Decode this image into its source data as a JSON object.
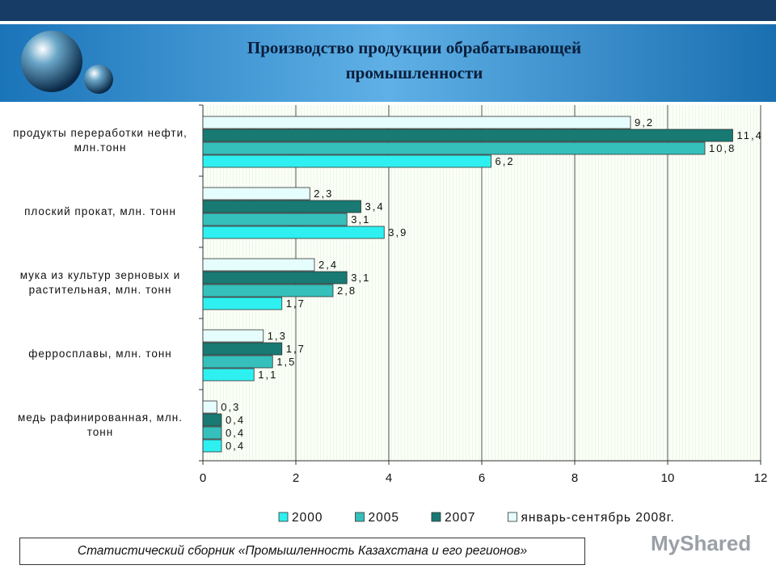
{
  "chart_data": {
    "type": "bar",
    "orientation": "horizontal",
    "title": "Производство продукции обрабатывающей промышленности",
    "categories": [
      "продукты переработки нефти, млн.тонн",
      "плоский прокат, млн. тонн",
      "мука из культур зерновых и растительная, млн. тонн",
      "ферросплавы, млн. тонн",
      "медь рафинированная, млн. тонн"
    ],
    "series": [
      {
        "name": "2000",
        "color": "#2ef0f0",
        "values": [
          6.2,
          3.9,
          1.7,
          1.1,
          0.4
        ],
        "value_labels": [
          "6,2",
          "3,9",
          "1,7",
          "1,1",
          "0,4"
        ]
      },
      {
        "name": "2005",
        "color": "#35c0bc",
        "values": [
          10.8,
          3.1,
          2.8,
          1.5,
          0.4
        ],
        "value_labels": [
          "10,8",
          "3,1",
          "2,8",
          "1,5",
          "0,4"
        ]
      },
      {
        "name": "2007",
        "color": "#187a72",
        "values": [
          11.4,
          3.4,
          3.1,
          1.7,
          0.4
        ],
        "value_labels": [
          "11,4",
          "3,4",
          "3,1",
          "1,7",
          "0,4"
        ]
      },
      {
        "name": "январь-сентябрь 2008г.",
        "color": "#e6fdfd",
        "values": [
          9.2,
          2.3,
          2.4,
          1.3,
          0.3
        ],
        "value_labels": [
          "9,2",
          "2,3",
          "2,4",
          "1,3",
          "0,3"
        ]
      }
    ],
    "xlim": [
      0,
      12
    ],
    "xticks": [
      0,
      2,
      4,
      6,
      8,
      10,
      12
    ],
    "grid": true,
    "legend": "bottom",
    "source": "Статистический сборник «Промышленность Казахстана и его регионов»",
    "watermark": "MyShared"
  }
}
